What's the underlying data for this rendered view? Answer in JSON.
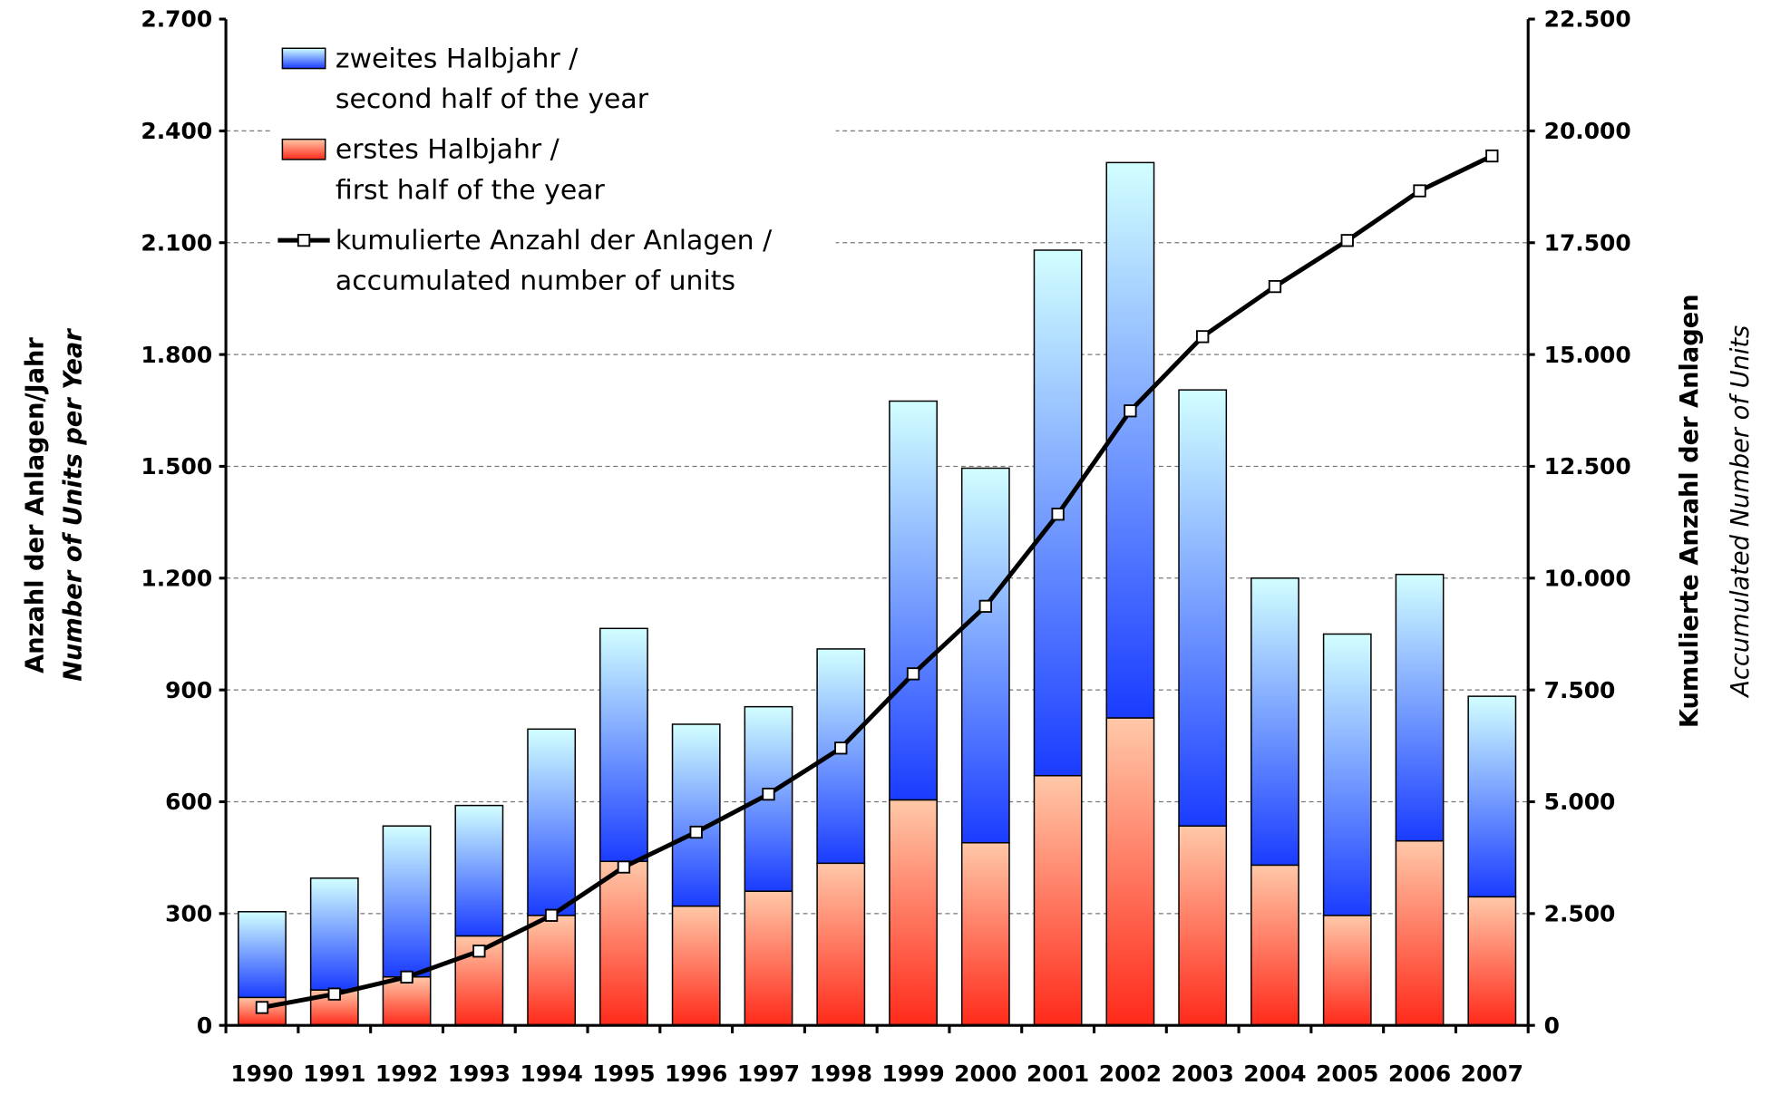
{
  "chart_data": {
    "type": "stacked-bar-line",
    "categories": [
      "1990",
      "1991",
      "1992",
      "1993",
      "1994",
      "1995",
      "1996",
      "1997",
      "1998",
      "1999",
      "2000",
      "2001",
      "2002",
      "2003",
      "2004",
      "2005",
      "2006",
      "2007"
    ],
    "series": [
      {
        "name": "erstes Halbjahr /\nfirst half of the year",
        "color": "#ff2a1a",
        "values": [
          75,
          95,
          130,
          240,
          295,
          440,
          320,
          360,
          435,
          605,
          490,
          670,
          825,
          535,
          430,
          295,
          495,
          345
        ]
      },
      {
        "name": "zweites Halbjahr /\nsecond half of the year",
        "color": "#1a3cff",
        "values": [
          230,
          300,
          405,
          350,
          500,
          625,
          488,
          495,
          575,
          1070,
          1005,
          1410,
          1490,
          1170,
          770,
          755,
          715,
          538
        ]
      },
      {
        "name": "kumulierte Anzahl der Anlagen /\naccumulated number of units",
        "color": "#000000",
        "axis": "y2",
        "values": [
          400,
          700,
          1080,
          1660,
          2460,
          3540,
          4320,
          5170,
          6200,
          7860,
          9370,
          11430,
          13740,
          15400,
          16520,
          17550,
          18660,
          19440
        ]
      }
    ],
    "ylabel": "Anzahl der Anlagen/Jahr",
    "ylabel_sub": "Number of Units per Year",
    "y2label": "Kumulierte Anzahl der Anlagen",
    "y2label_sub": "Accumulated Number of Units",
    "ylim": [
      0,
      2700
    ],
    "yticks": [
      0,
      300,
      600,
      900,
      {
        "value": 1200,
        "label": "1.200"
      },
      {
        "value": 1500,
        "label": "1.500"
      },
      {
        "value": 1800,
        "label": "1.800"
      },
      {
        "value": 2100,
        "label": "2.100"
      },
      {
        "value": 2400,
        "label": "2.400"
      },
      {
        "value": 2700,
        "label": "2.700"
      }
    ],
    "y2lim": [
      0,
      22500
    ],
    "y2ticks": [
      0,
      {
        "value": 2500,
        "label": "2.500"
      },
      {
        "value": 5000,
        "label": "5.000"
      },
      {
        "value": 7500,
        "label": "7.500"
      },
      {
        "value": 10000,
        "label": "10.000"
      },
      {
        "value": 12500,
        "label": "12.500"
      },
      {
        "value": 15000,
        "label": "15.000"
      },
      {
        "value": 17500,
        "label": "17.500"
      },
      {
        "value": 20000,
        "label": "20.000"
      },
      {
        "value": 22500,
        "label": "22.500"
      }
    ],
    "grid": true
  }
}
